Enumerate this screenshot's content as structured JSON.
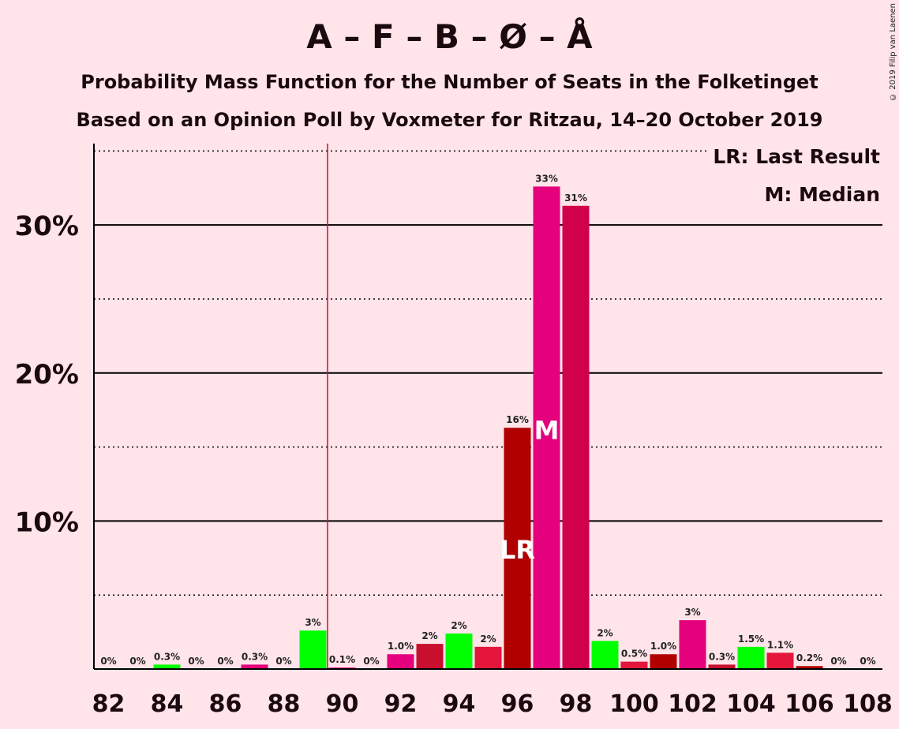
{
  "chart_data": {
    "type": "bar",
    "title": "A – F – B – Ø – Å",
    "subtitle_1": "Probability Mass Function for the Number of Seats in the Folketinget",
    "subtitle_2": "Based on an Opinion Poll by Voxmeter for Ritzau, 14–20 October 2019",
    "copyright": "© 2019 Filip van Laenen",
    "legend": {
      "placement": "top-right",
      "last_result": "LR: Last Result",
      "median": "M: Median"
    },
    "categories": [
      82,
      83,
      84,
      85,
      86,
      87,
      88,
      89,
      90,
      91,
      92,
      93,
      94,
      95,
      96,
      97,
      98,
      99,
      100,
      101,
      102,
      103,
      104,
      105,
      106,
      107,
      108
    ],
    "values": [
      0,
      0,
      0.3,
      0,
      0,
      0.3,
      0,
      2.6,
      0.1,
      0,
      1.0,
      1.7,
      2.4,
      1.5,
      16.3,
      32.6,
      31.3,
      1.9,
      0.5,
      1.0,
      3.3,
      0.3,
      1.5,
      1.1,
      0.2,
      0,
      0
    ],
    "labels": [
      "0%",
      "0%",
      "0.3%",
      "0%",
      "0%",
      "0.3%",
      "0%",
      "3%",
      "0.1%",
      "0%",
      "1.0%",
      "2%",
      "2%",
      "2%",
      "16%",
      "33%",
      "31%",
      "2%",
      "0.5%",
      "1.0%",
      "3%",
      "0.3%",
      "1.5%",
      "1.1%",
      "0.2%",
      "0%",
      "0%"
    ],
    "bar_colors": [
      "#E5007D",
      "#C8102E",
      "#00FF00",
      "#E5007D",
      "#C8102E",
      "#E5007D",
      "#C8102E",
      "#00FF00",
      "#E5007D",
      "#C8102E",
      "#E5007D",
      "#C8102E",
      "#00FF00",
      "#E4163C",
      "#B10000",
      "#E5007D",
      "#D1004B",
      "#00FF00",
      "#E4163C",
      "#B10000",
      "#E5007D",
      "#C8102E",
      "#00FF00",
      "#E4163C",
      "#B10000",
      "#E5007D",
      "#C8102E"
    ],
    "x_tick_labels": [
      "82",
      "84",
      "86",
      "88",
      "90",
      "92",
      "94",
      "96",
      "98",
      "100",
      "102",
      "104",
      "106",
      "108"
    ],
    "x_tick_values": [
      82,
      84,
      86,
      88,
      90,
      92,
      94,
      96,
      98,
      100,
      102,
      104,
      106,
      108
    ],
    "y_tick_labels": [
      "10%",
      "20%",
      "30%"
    ],
    "y_tick_values": [
      10,
      20,
      30
    ],
    "ylim": [
      0,
      35.5
    ],
    "grid": true,
    "last_result_seat": 89.5,
    "last_result_marker_seat": 96,
    "last_result_marker": "LR",
    "median_seat": 97,
    "median_marker": "M",
    "colors": {
      "background": "#FFE4E9",
      "last_result_line": "#C8102E"
    }
  }
}
